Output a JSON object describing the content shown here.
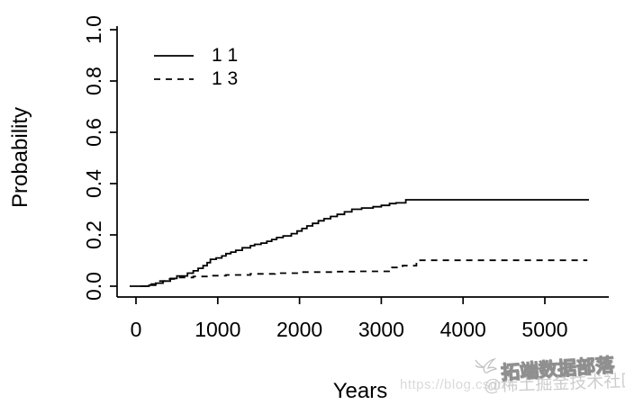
{
  "watermarks": {
    "url_text": "https://blog.csdn",
    "juejin_text": "@稀土掘金技术社区",
    "tuoduan_text": "拓端数据部落",
    "logo": "bird-scribble-icon",
    "url_color": "#dadada",
    "juejin_color": "#cdcdcd",
    "tuoduan_stroke_color": "#8f8f8f"
  },
  "chart_data": {
    "type": "line",
    "subtype": "step-function (cumulative incidence curves)",
    "title": "",
    "xlabel": "Years",
    "ylabel": "Probability",
    "xlim": [
      0,
      5600
    ],
    "ylim": [
      0.0,
      1.0
    ],
    "x_ticks": [
      "0",
      "1000",
      "2000",
      "3000",
      "4000",
      "5000"
    ],
    "y_ticks": [
      "0.0",
      "0.2",
      "0.4",
      "0.6",
      "0.8",
      "1.0"
    ],
    "grid": false,
    "axis_style": "L-shaped (left + bottom only)",
    "legend_position": "inside top-left",
    "line_color": "#000000",
    "series": [
      {
        "name": "1 1",
        "style": "solid",
        "color": "#000000",
        "points": [
          [
            0,
            0
          ],
          [
            160,
            0.004
          ],
          [
            240,
            0.012
          ],
          [
            330,
            0.02
          ],
          [
            420,
            0.03
          ],
          [
            500,
            0.04
          ],
          [
            630,
            0.051
          ],
          [
            700,
            0.06
          ],
          [
            760,
            0.07
          ],
          [
            820,
            0.08
          ],
          [
            870,
            0.092
          ],
          [
            910,
            0.105
          ],
          [
            980,
            0.11
          ],
          [
            1050,
            0.118
          ],
          [
            1100,
            0.127
          ],
          [
            1160,
            0.133
          ],
          [
            1220,
            0.14
          ],
          [
            1300,
            0.15
          ],
          [
            1400,
            0.158
          ],
          [
            1450,
            0.163
          ],
          [
            1530,
            0.168
          ],
          [
            1600,
            0.175
          ],
          [
            1660,
            0.182
          ],
          [
            1720,
            0.19
          ],
          [
            1800,
            0.196
          ],
          [
            1900,
            0.205
          ],
          [
            1970,
            0.215
          ],
          [
            2030,
            0.225
          ],
          [
            2090,
            0.235
          ],
          [
            2160,
            0.245
          ],
          [
            2230,
            0.255
          ],
          [
            2300,
            0.263
          ],
          [
            2380,
            0.272
          ],
          [
            2460,
            0.28
          ],
          [
            2550,
            0.29
          ],
          [
            2640,
            0.3
          ],
          [
            2760,
            0.305
          ],
          [
            2900,
            0.31
          ],
          [
            3000,
            0.315
          ],
          [
            3100,
            0.322
          ],
          [
            3180,
            0.325
          ],
          [
            3300,
            0.337
          ],
          [
            5540,
            0.337
          ]
        ]
      },
      {
        "name": "1 3",
        "style": "dashed",
        "color": "#000000",
        "points": [
          [
            60,
            0
          ],
          [
            150,
            0.008
          ],
          [
            280,
            0.02
          ],
          [
            400,
            0.028
          ],
          [
            520,
            0.034
          ],
          [
            700,
            0.038
          ],
          [
            900,
            0.041
          ],
          [
            1100,
            0.044
          ],
          [
            1400,
            0.048
          ],
          [
            1700,
            0.051
          ],
          [
            2000,
            0.055
          ],
          [
            2400,
            0.057
          ],
          [
            2700,
            0.058
          ],
          [
            3130,
            0.073
          ],
          [
            3260,
            0.08
          ],
          [
            3430,
            0.101
          ],
          [
            5520,
            0.101
          ]
        ]
      }
    ]
  }
}
